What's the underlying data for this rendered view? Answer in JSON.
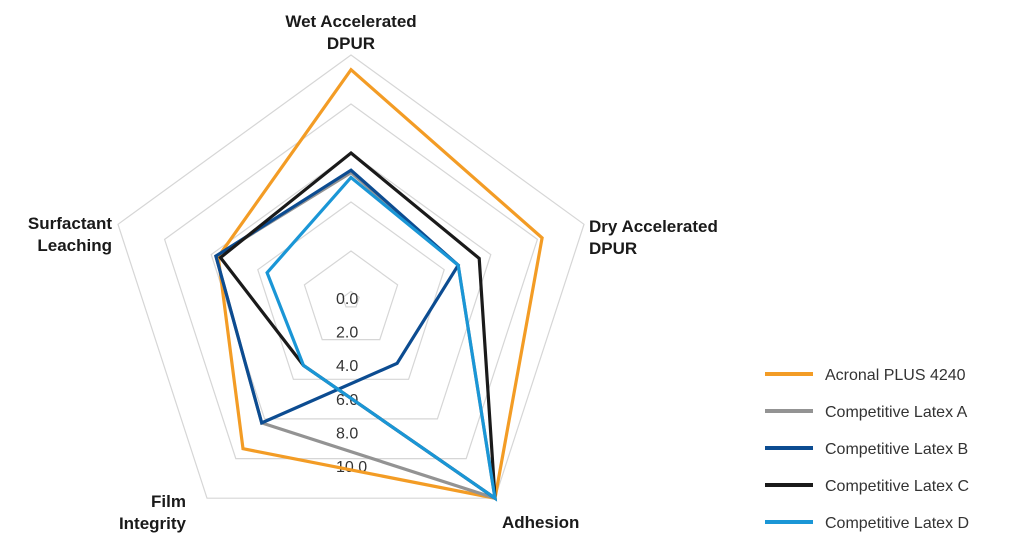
{
  "chart_data": {
    "type": "radar",
    "axes": [
      {
        "label": [
          "Wet Accelerated",
          "DPUR"
        ]
      },
      {
        "label": [
          "Dry Accelerated",
          "DPUR"
        ]
      },
      {
        "label": [
          "Adhesion"
        ]
      },
      {
        "label": [
          "Film",
          "Integrity"
        ]
      },
      {
        "label": [
          "Surfactant",
          "Leaching"
        ]
      }
    ],
    "range": [
      0,
      10
    ],
    "ticks": [
      "0.0",
      "2.0",
      "4.0",
      "6.0",
      "8.0",
      "10.0"
    ],
    "tick_values": [
      0,
      2,
      4,
      6,
      8,
      10
    ],
    "series": [
      {
        "name": "Acronal PLUS 4240",
        "color": "#f39c25",
        "values": [
          9.4,
          8.2,
          10.0,
          7.5,
          5.7
        ]
      },
      {
        "name": "Competitive Latex A",
        "color": "#939393",
        "values": [
          5.2,
          4.6,
          10.0,
          6.2,
          5.8
        ]
      },
      {
        "name": "Competitive Latex B",
        "color": "#0c4c91",
        "values": [
          5.3,
          4.6,
          3.2,
          6.2,
          5.8
        ]
      },
      {
        "name": "Competitive Latex C",
        "color": "#1a1a1a",
        "values": [
          6.0,
          5.5,
          10.0,
          3.3,
          5.6
        ]
      },
      {
        "name": "Competitive Latex D",
        "color": "#1a96d6",
        "values": [
          5.0,
          4.6,
          10.0,
          3.3,
          3.6
        ]
      }
    ],
    "legend_position": "right",
    "grid": true
  }
}
